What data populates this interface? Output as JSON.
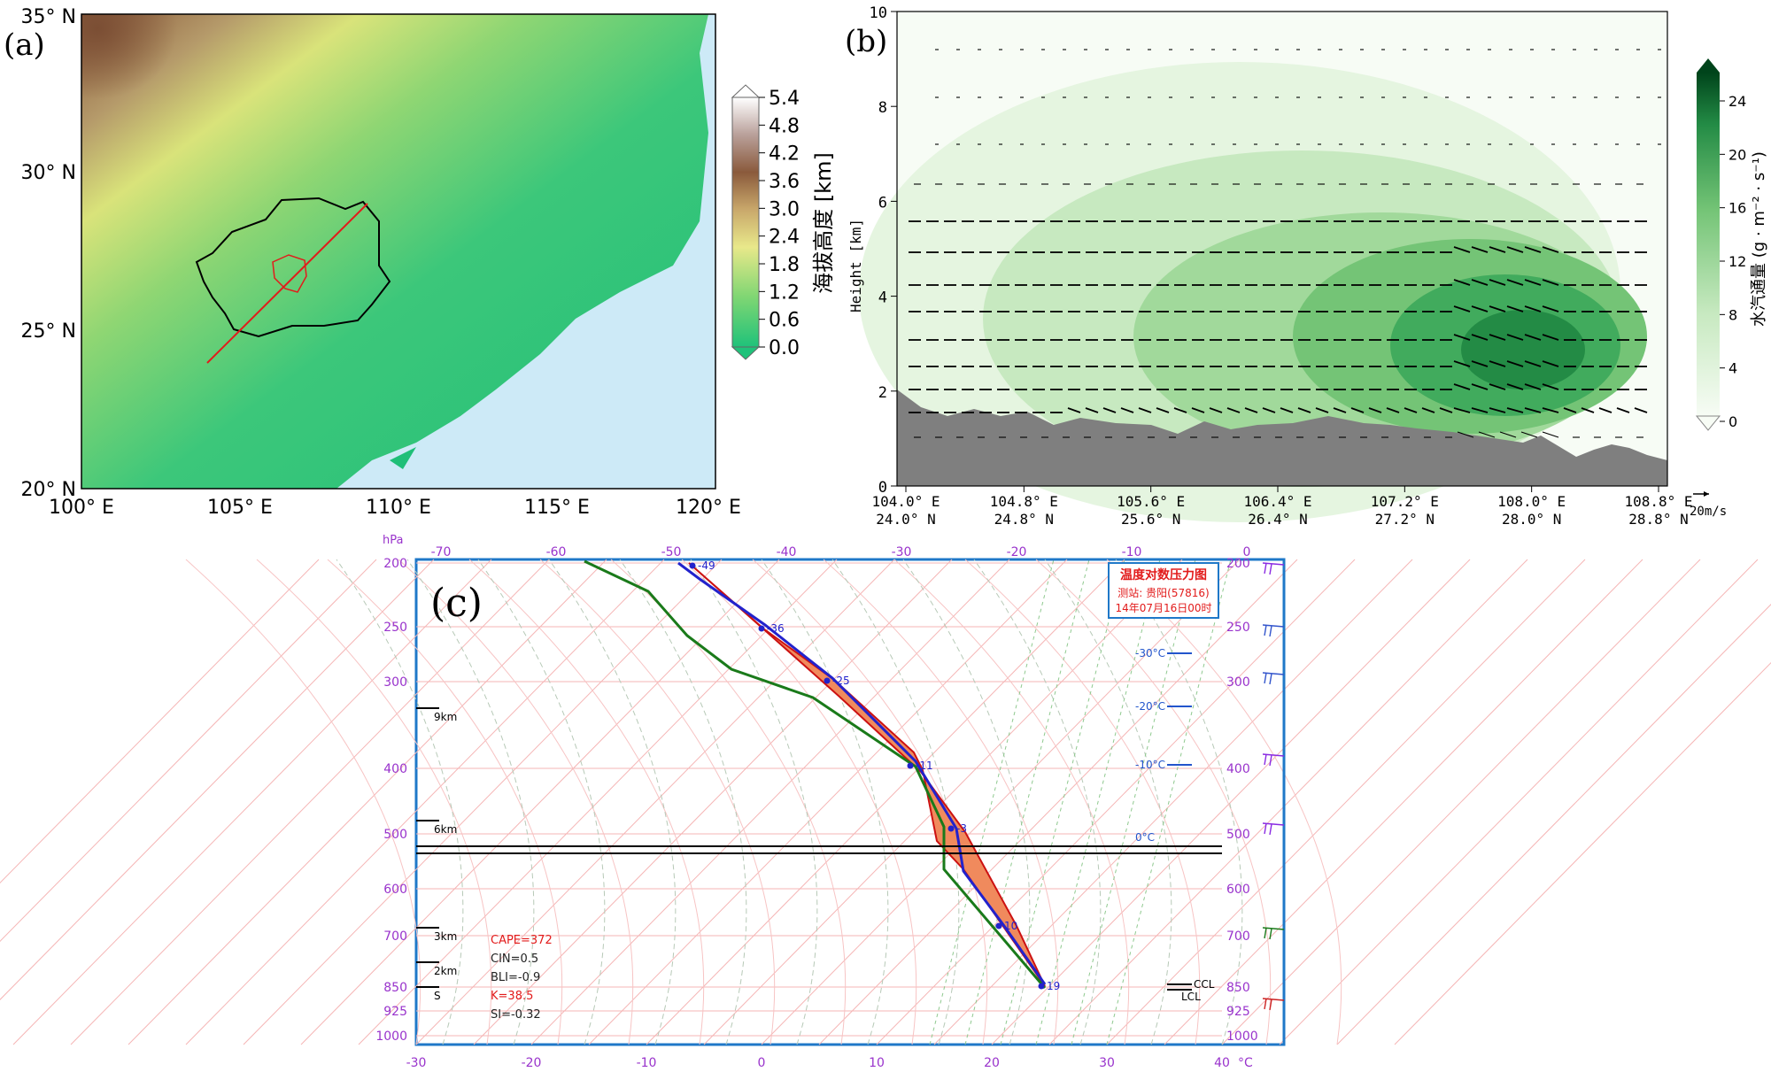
{
  "colors": {
    "terrain_low": "#1fc27a",
    "terrain_mid": "#d9e37a",
    "terrain_high": "#8a5a3c",
    "ocean": "#cdeaf7",
    "red": "#e21b1b",
    "green_dark": "#00441b",
    "blue": "#2222cc",
    "purple": "#9933cc",
    "pink_grid": "#f5b5b5"
  },
  "panel_a": {
    "label": "(a)",
    "lat_ticks": [
      "35° N",
      "30° N",
      "25° N",
      "20° N"
    ],
    "lon_ticks": [
      "100° E",
      "105° E",
      "110° E",
      "115° E",
      "120° E"
    ],
    "colorbar": {
      "title": "海拔高度 [km]",
      "ticks": [
        "5.4",
        "4.8",
        "4.2",
        "3.6",
        "3.0",
        "2.4",
        "1.8",
        "1.2",
        "0.6",
        "0.0"
      ]
    }
  },
  "panel_b": {
    "label": "(b)",
    "ylabel": "Height [km]",
    "y_ticks": [
      "10",
      "8",
      "6",
      "4",
      "2",
      "0"
    ],
    "x_ticks": [
      {
        "lon": "104.0° E",
        "lat": "24.0° N"
      },
      {
        "lon": "104.8° E",
        "lat": "24.8° N"
      },
      {
        "lon": "105.6° E",
        "lat": "25.6° N"
      },
      {
        "lon": "106.4° E",
        "lat": "26.4° N"
      },
      {
        "lon": "107.2° E",
        "lat": "27.2° N"
      },
      {
        "lon": "108.0° E",
        "lat": "28.0° N"
      },
      {
        "lon": "108.8° E",
        "lat": "28.8° N"
      }
    ],
    "ref_vector": "20m/s",
    "colorbar": {
      "title": "水汽通量 (g · m⁻² · s⁻¹)",
      "ticks": [
        "24",
        "20",
        "16",
        "12",
        "8",
        "4",
        "0"
      ]
    }
  },
  "panel_c": {
    "label": "(c)",
    "p_unit": "hPa",
    "pressure_levels": [
      "200",
      "250",
      "300",
      "400",
      "500",
      "600",
      "700",
      "850",
      "925",
      "1000"
    ],
    "top_temps": [
      "-70",
      "-60",
      "-50",
      "-40",
      "-30",
      "-20",
      "-10",
      "0"
    ],
    "bottom_temps": [
      "-30",
      "-20",
      "-10",
      "0",
      "10",
      "20",
      "30",
      "40"
    ],
    "deg_unit": "°C",
    "heights": [
      "9km",
      "6km",
      "3km",
      "2km",
      "S"
    ],
    "iso_labels": [
      "-30°C",
      "-20°C",
      "-10°C",
      "0°C"
    ],
    "title_box": {
      "title": "温度对数压力图",
      "line1": "测站: 贵阳(57816)",
      "line2": "14年07月16日00时"
    },
    "indices": {
      "cape": "CAPE=372",
      "cin": "CIN=0.5",
      "bli": "BLI=-0.9",
      "k": "K=38.5",
      "si": "SI=-0.32"
    },
    "point_labels": [
      "-49",
      "-36",
      "-25",
      "-11",
      "-3",
      "10",
      "19"
    ],
    "ccl": "CCL",
    "lcl": "LCL"
  }
}
